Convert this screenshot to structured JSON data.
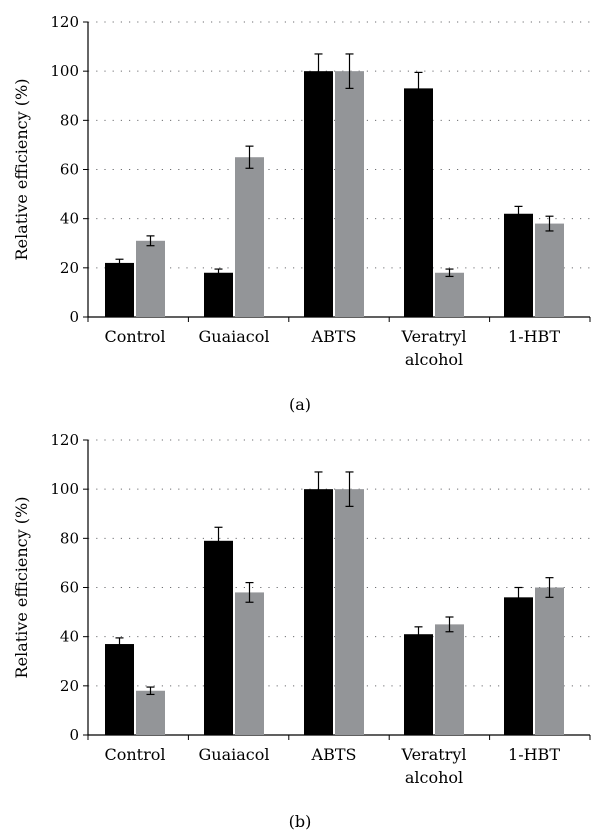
{
  "chart_data": [
    {
      "type": "bar",
      "panel_label": "(a)",
      "ylabel": "Relative efficiency (%)",
      "xlabel": "",
      "ylim": [
        0,
        120
      ],
      "yticks": [
        0,
        20,
        40,
        60,
        80,
        100,
        120
      ],
      "grid": true,
      "categories": [
        [
          "Control"
        ],
        [
          "Guaiacol"
        ],
        [
          "ABTS"
        ],
        [
          "Veratryl",
          "alcohol"
        ],
        [
          "1-HBT"
        ]
      ],
      "series": [
        {
          "color": "#000000",
          "values": [
            22,
            18,
            100,
            93,
            42
          ],
          "errors": [
            1.5,
            1.5,
            7,
            6.5,
            3
          ]
        },
        {
          "color": "#939598",
          "values": [
            31,
            65,
            100,
            18,
            38
          ],
          "errors": [
            2,
            4.5,
            7,
            1.5,
            3
          ]
        }
      ]
    },
    {
      "type": "bar",
      "panel_label": "(b)",
      "ylabel": "Relative efficiency (%)",
      "xlabel": "",
      "ylim": [
        0,
        120
      ],
      "yticks": [
        0,
        20,
        40,
        60,
        80,
        100,
        120
      ],
      "grid": true,
      "categories": [
        [
          "Control"
        ],
        [
          "Guaiacol"
        ],
        [
          "ABTS"
        ],
        [
          "Veratryl",
          "alcohol"
        ],
        [
          "1-HBT"
        ]
      ],
      "series": [
        {
          "color": "#000000",
          "values": [
            37,
            79,
            100,
            41,
            56
          ],
          "errors": [
            2.5,
            5.5,
            7,
            3,
            4
          ]
        },
        {
          "color": "#939598",
          "values": [
            18,
            58,
            100,
            45,
            60
          ],
          "errors": [
            1.5,
            4,
            7,
            3,
            4
          ]
        }
      ]
    }
  ]
}
